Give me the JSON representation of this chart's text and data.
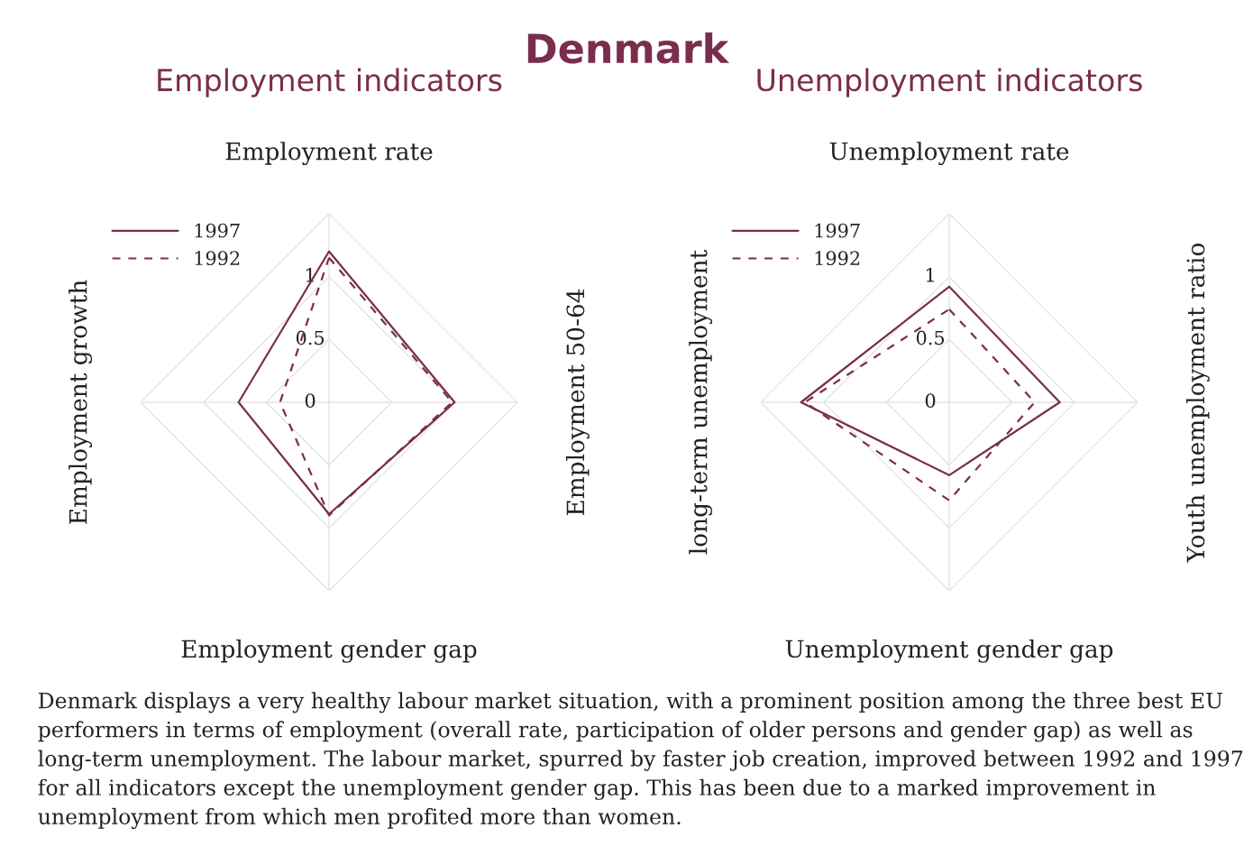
{
  "chart_data": [
    {
      "type": "radar",
      "title": "Employment indicators",
      "categories": [
        "Employment rate",
        "Employment 50-64",
        "Employment gender gap",
        "Employment growth"
      ],
      "ylim": [
        0,
        1.5
      ],
      "yticks": [
        0,
        0.5,
        1
      ],
      "legend": "top left",
      "grid": true,
      "series": [
        {
          "name": "1997",
          "color": "#7b2d4e",
          "line_style": "solid",
          "values": [
            1.2,
            1.0,
            0.89,
            0.72
          ]
        },
        {
          "name": "1992",
          "color": "#7b2d4e",
          "line_style": "dashed",
          "values": [
            1.15,
            0.98,
            0.9,
            0.39
          ]
        }
      ]
    },
    {
      "type": "radar",
      "title": "Unemployment indicators",
      "categories": [
        "Unemployment rate",
        "Youth unemployment ratio",
        "Unemployment gender gap",
        "long-term unemployment"
      ],
      "ylim": [
        0,
        1.5
      ],
      "yticks": [
        0,
        0.5,
        1
      ],
      "legend": "top left",
      "grid": true,
      "series": [
        {
          "name": "1997",
          "color": "#7b2d4e",
          "line_style": "solid",
          "values": [
            0.92,
            0.88,
            0.58,
            1.18
          ]
        },
        {
          "name": "1992",
          "color": "#7b2d4e",
          "line_style": "dashed",
          "values": [
            0.74,
            0.68,
            0.78,
            1.15
          ]
        }
      ],
      "annotations": [
        "Denmark",
        "Denmark displays a very healthy labour market situation, with a prominent position among the three best EU performers in terms of employment (overall rate, participation of older persons and gender gap) as well as long-term unemployment. The labour market, spurred by faster job creation, improved between 1992 and 1997 for all indicators except the unemployment gender gap. This has been due to a marked improvement in unemployment from which men profited more than women."
      ]
    }
  ]
}
